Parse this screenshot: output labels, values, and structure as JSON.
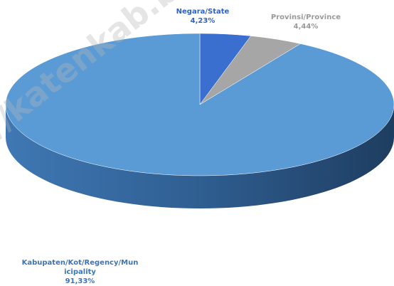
{
  "chart_data": {
    "type": "pie",
    "categories": [
      "Negara/State",
      "Provinsi/Province",
      "Kabupaten/Kot/Regency/Municipality"
    ],
    "values": [
      4.23,
      4.44,
      91.33
    ],
    "value_labels": [
      "4,23%",
      "4,44%",
      "91,33%"
    ],
    "colors": [
      "#3a6fd0",
      "#a6a6a6",
      "#5b9bd5"
    ],
    "label_colors": [
      "#2f62c4",
      "#9a9a9a",
      "#3c74b8"
    ],
    "watermark": "//katenkab.bps.g"
  }
}
